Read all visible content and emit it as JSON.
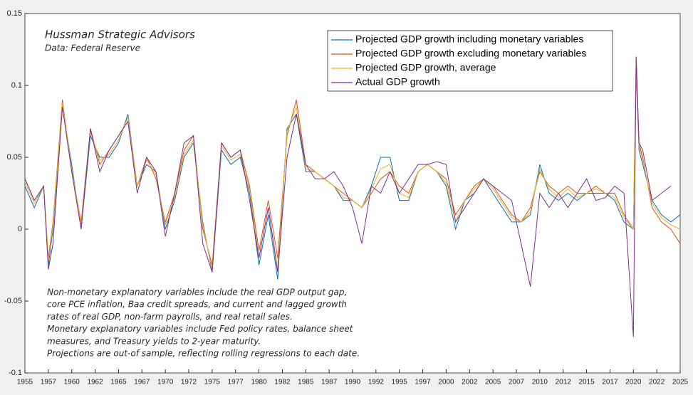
{
  "chart_data": {
    "type": "line",
    "title": "Hussman Strategic Advisors",
    "subtitle": "Data: Federal Reserve",
    "annotation": [
      "Non-monetary explanatory variables include the real GDP output gap,",
      "core PCE inflation, Baa credit spreads, and current and lagged growth",
      "rates of real GDP, non-farm payrolls, and real retail sales.",
      "Monetary explanatory variables include Fed policy rates, balance sheet",
      "measures, and Treasury yields to 2-year maturity.",
      "Projections are out-of sample, reflecting rolling regressions to each date."
    ],
    "legend": "top-right",
    "x": [
      1955,
      1956,
      1957,
      1957.5,
      1958,
      1959,
      1960,
      1961,
      1962,
      1963,
      1964,
      1965,
      1966,
      1967,
      1968,
      1969,
      1970,
      1971,
      1972,
      1973,
      1974,
      1975,
      1976,
      1977,
      1978,
      1979,
      1980,
      1981,
      1982,
      1983,
      1984,
      1985,
      1986,
      1987,
      1988,
      1989,
      1990,
      1991,
      1992,
      1993,
      1994,
      1995,
      1996,
      1997,
      1998,
      1999,
      2000,
      2001,
      2002,
      2003,
      2004,
      2005,
      2006,
      2007,
      2008,
      2009,
      2010,
      2011,
      2012,
      2013,
      2014,
      2015,
      2016,
      2017,
      2018,
      2019,
      2020,
      2020.3,
      2020.6,
      2021,
      2022,
      2023,
      2024,
      2025
    ],
    "series": [
      {
        "name": "Projected GDP growth including monetary variables",
        "color": "#0072bd",
        "values": [
          0.03,
          0.015,
          0.03,
          -0.025,
          0.0,
          0.085,
          0.045,
          0.0,
          0.065,
          0.05,
          0.05,
          0.06,
          0.08,
          0.03,
          0.045,
          0.04,
          0.0,
          0.02,
          0.05,
          0.06,
          0.005,
          -0.03,
          0.055,
          0.045,
          0.05,
          0.025,
          -0.025,
          0.01,
          -0.035,
          0.07,
          0.08,
          0.04,
          0.04,
          0.035,
          0.03,
          0.02,
          0.02,
          0.015,
          0.03,
          0.05,
          0.05,
          0.02,
          0.02,
          0.04,
          0.045,
          0.04,
          0.03,
          0.0,
          0.02,
          0.025,
          0.035,
          0.025,
          0.015,
          0.005,
          0.005,
          0.01,
          0.045,
          0.025,
          0.02,
          0.025,
          0.02,
          0.025,
          0.025,
          0.025,
          0.02,
          0.005,
          0.0,
          0.11,
          0.055,
          0.045,
          0.02,
          0.01,
          0.005,
          0.01
        ]
      },
      {
        "name": "Projected GDP growth excluding monetary variables",
        "color": "#d95319",
        "values": [
          0.035,
          0.02,
          0.03,
          -0.02,
          0.005,
          0.09,
          0.04,
          0.005,
          0.07,
          0.045,
          0.055,
          0.065,
          0.075,
          0.03,
          0.05,
          0.035,
          0.005,
          0.025,
          0.055,
          0.065,
          0.0,
          -0.025,
          0.06,
          0.05,
          0.055,
          0.03,
          -0.015,
          0.02,
          -0.02,
          0.065,
          0.09,
          0.045,
          0.04,
          0.035,
          0.03,
          0.025,
          0.02,
          0.015,
          0.025,
          0.035,
          0.04,
          0.03,
          0.025,
          0.04,
          0.045,
          0.04,
          0.035,
          0.01,
          0.02,
          0.03,
          0.035,
          0.03,
          0.02,
          0.01,
          0.005,
          0.015,
          0.04,
          0.03,
          0.025,
          0.03,
          0.025,
          0.025,
          0.03,
          0.025,
          0.025,
          0.01,
          0.0,
          0.12,
          0.06,
          0.05,
          0.015,
          0.005,
          0.0,
          -0.01
        ]
      },
      {
        "name": "Projected GDP growth, average",
        "color": "#edb120",
        "values": [
          0.033,
          0.018,
          0.03,
          -0.022,
          0.003,
          0.088,
          0.042,
          0.003,
          0.068,
          0.048,
          0.052,
          0.062,
          0.078,
          0.03,
          0.048,
          0.038,
          0.003,
          0.022,
          0.052,
          0.062,
          0.003,
          -0.028,
          0.058,
          0.048,
          0.052,
          0.028,
          -0.02,
          0.015,
          -0.028,
          0.068,
          0.085,
          0.042,
          0.04,
          0.035,
          0.03,
          0.022,
          0.02,
          0.015,
          0.028,
          0.042,
          0.045,
          0.025,
          0.022,
          0.04,
          0.045,
          0.04,
          0.032,
          0.005,
          0.02,
          0.028,
          0.035,
          0.028,
          0.018,
          0.008,
          0.005,
          0.012,
          0.042,
          0.028,
          0.022,
          0.028,
          0.022,
          0.025,
          0.028,
          0.025,
          0.022,
          0.008,
          0.0,
          0.115,
          0.058,
          0.048,
          0.018,
          0.008,
          0.003,
          0.0
        ]
      },
      {
        "name": "Actual GDP growth",
        "color": "#7e2f8e",
        "values": [
          0.035,
          0.02,
          0.03,
          -0.028,
          -0.01,
          0.085,
          0.04,
          0.0,
          0.07,
          0.04,
          0.055,
          0.065,
          0.075,
          0.025,
          0.05,
          0.04,
          -0.005,
          0.025,
          0.06,
          0.065,
          -0.01,
          -0.03,
          0.06,
          0.05,
          0.055,
          0.02,
          -0.02,
          0.015,
          -0.03,
          0.05,
          0.08,
          0.045,
          0.035,
          0.035,
          0.04,
          0.03,
          0.015,
          -0.01,
          0.03,
          0.025,
          0.04,
          0.025,
          0.035,
          0.045,
          0.045,
          0.047,
          0.045,
          0.005,
          0.015,
          0.025,
          0.035,
          0.03,
          0.025,
          0.02,
          -0.01,
          -0.04,
          0.025,
          0.015,
          0.025,
          0.015,
          0.025,
          0.035,
          0.02,
          0.022,
          0.03,
          0.025,
          -0.075,
          0.12,
          0.06,
          0.055,
          0.02,
          0.025,
          0.03,
          null
        ]
      }
    ],
    "xlim": [
      1955,
      2025
    ],
    "xticks": [
      1955,
      {
        "value": 1957.5,
        "label": "1957"
      },
      1960,
      {
        "value": 1962.5,
        "label": "1962"
      },
      1965,
      {
        "value": 1967.5,
        "label": "1967"
      },
      1970,
      {
        "value": 1972.5,
        "label": "1972"
      },
      1975,
      {
        "value": 1977.5,
        "label": "1977"
      },
      1980,
      {
        "value": 1982.5,
        "label": "1982"
      },
      1985,
      {
        "value": 1987.5,
        "label": "1987"
      },
      1990,
      {
        "value": 1992.5,
        "label": "1992"
      },
      1995,
      {
        "value": 1997.5,
        "label": "1997"
      },
      2000,
      {
        "value": 2002.5,
        "label": "2002"
      },
      2005,
      {
        "value": 2007.5,
        "label": "2007"
      },
      2010,
      {
        "value": 2012.5,
        "label": "2012"
      },
      2015,
      {
        "value": 2017.5,
        "label": "2017"
      },
      2020,
      {
        "value": 2022.5,
        "label": "2022"
      },
      2025
    ],
    "ylim": [
      -0.1,
      0.15
    ],
    "yticks": [
      -0.1,
      -0.05,
      0,
      0.05,
      0.1,
      0.15
    ],
    "grid": false
  }
}
